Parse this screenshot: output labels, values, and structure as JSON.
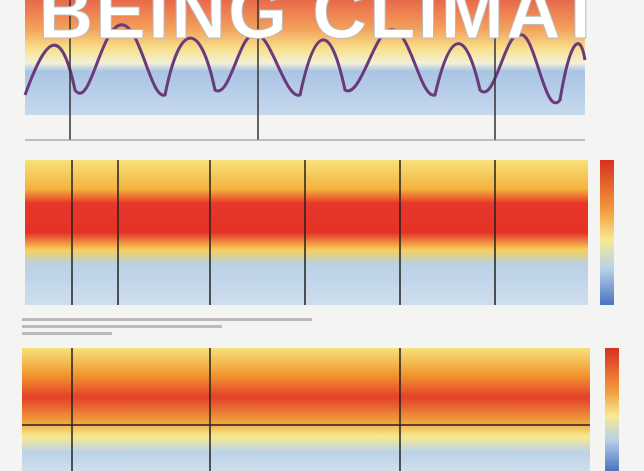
{
  "header": {
    "title": "BEING CLIMAT"
  }
}
